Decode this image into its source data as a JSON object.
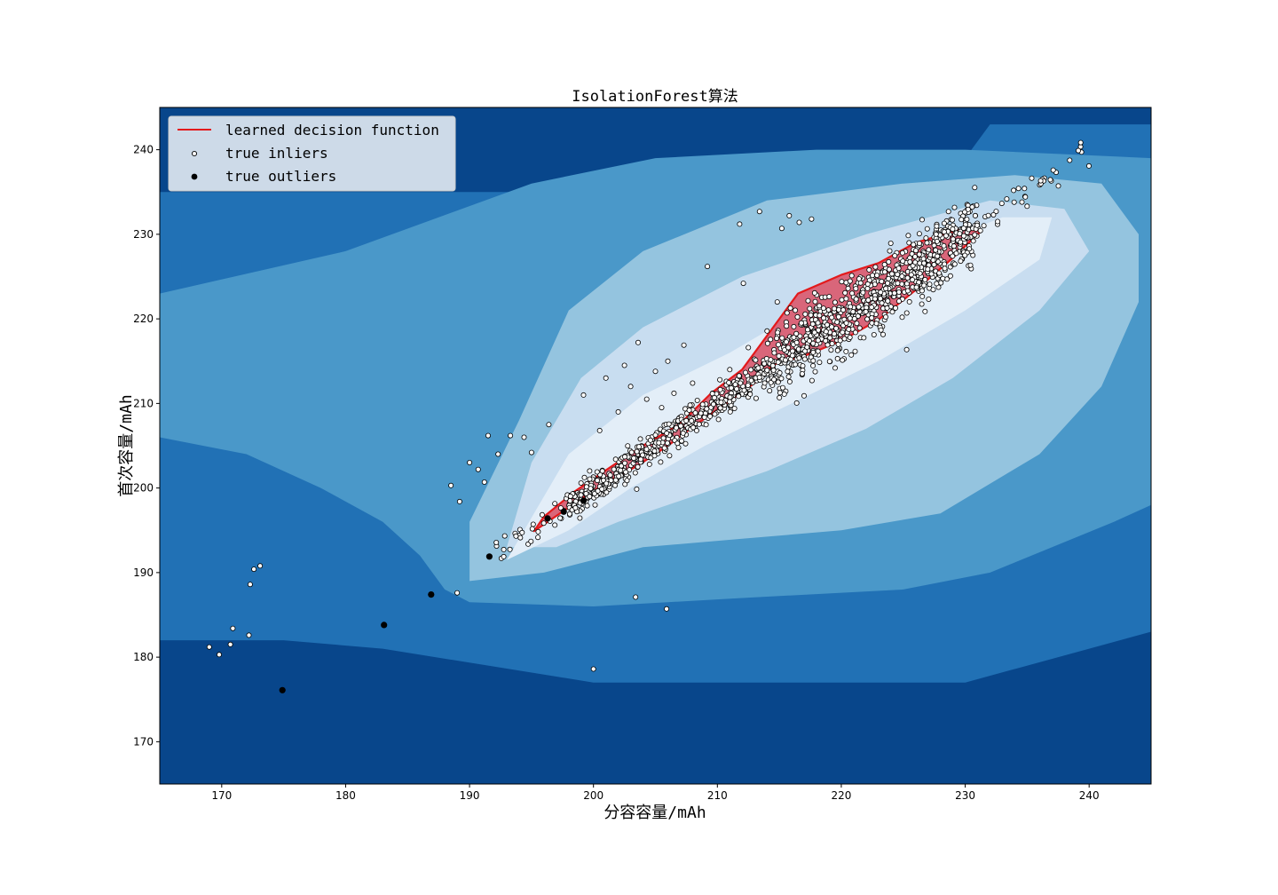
{
  "chart_data": {
    "type": "scatter",
    "title": "IsolationForest算法",
    "xlabel": "分容容量/mAh",
    "ylabel": "首次容量/mAh",
    "xlim": [
      165,
      245
    ],
    "ylim": [
      165,
      245
    ],
    "xticks": [
      170,
      180,
      190,
      200,
      210,
      220,
      230,
      240
    ],
    "yticks": [
      170,
      180,
      190,
      200,
      210,
      220,
      230,
      240
    ],
    "grid": false,
    "legend_position": "top-left",
    "colors": {
      "background_levels": [
        "#08468b",
        "#2171b5",
        "#4a98c9",
        "#94c4df",
        "#c8ddf0",
        "#e3eef8"
      ],
      "decision_line": "#e31a1c",
      "decision_fill": "#d9667a",
      "inlier_face": "#ffffff",
      "inlier_edge": "#000000",
      "outlier": "#000000"
    },
    "legend": [
      {
        "label": "learned decision function",
        "marker": "line"
      },
      {
        "label": "true inliers",
        "marker": "open-circle"
      },
      {
        "label": "true outliers",
        "marker": "filled-circle"
      }
    ],
    "decision_boundary": [
      [
        195.2,
        194.9
      ],
      [
        198.5,
        198.2
      ],
      [
        201.0,
        200.6
      ],
      [
        203.5,
        202.6
      ],
      [
        206.0,
        205.0
      ],
      [
        208.0,
        207.2
      ],
      [
        210.5,
        209.8
      ],
      [
        213.0,
        212.4
      ],
      [
        214.5,
        214.6
      ],
      [
        217.0,
        215.6
      ],
      [
        220.0,
        217.4
      ],
      [
        223.0,
        219.9
      ],
      [
        226.0,
        223.4
      ],
      [
        229.0,
        227.2
      ],
      [
        231.3,
        230.4
      ],
      [
        229.6,
        230.6
      ],
      [
        226.0,
        229.0
      ],
      [
        223.0,
        226.6
      ],
      [
        220.0,
        225.2
      ],
      [
        216.5,
        223.0
      ],
      [
        214.2,
        218.4
      ],
      [
        212.0,
        214.0
      ],
      [
        209.5,
        211.2
      ],
      [
        207.0,
        207.6
      ],
      [
        204.0,
        205.0
      ],
      [
        201.5,
        202.6
      ],
      [
        198.5,
        199.6
      ],
      [
        196.0,
        196.6
      ],
      [
        195.2,
        194.9
      ]
    ],
    "band_inliers": {
      "x_range": [
        192.0,
        240.0
      ],
      "trend": [
        [
          192.0,
          191.8
        ],
        [
          240.5,
          240.0
        ]
      ],
      "spread": 3.0
    },
    "scattered_inliers": [
      [
        169.0,
        181.2
      ],
      [
        169.8,
        180.3
      ],
      [
        170.7,
        181.5
      ],
      [
        170.9,
        183.4
      ],
      [
        172.2,
        182.6
      ],
      [
        172.3,
        188.6
      ],
      [
        172.6,
        190.4
      ],
      [
        173.1,
        190.8
      ],
      [
        188.5,
        200.3
      ],
      [
        189.2,
        198.4
      ],
      [
        189.0,
        187.6
      ],
      [
        190.0,
        203.0
      ],
      [
        190.7,
        202.2
      ],
      [
        191.2,
        200.7
      ],
      [
        191.5,
        206.2
      ],
      [
        192.3,
        204.0
      ],
      [
        193.3,
        206.2
      ],
      [
        194.4,
        206.0
      ],
      [
        195.0,
        204.2
      ],
      [
        196.4,
        207.5
      ],
      [
        200.0,
        178.6
      ],
      [
        203.4,
        187.1
      ],
      [
        205.9,
        185.7
      ],
      [
        199.2,
        211.0
      ],
      [
        201.0,
        213.0
      ],
      [
        202.5,
        214.5
      ],
      [
        203.6,
        217.2
      ],
      [
        205.0,
        213.8
      ],
      [
        206.0,
        215.0
      ],
      [
        207.3,
        216.9
      ],
      [
        204.3,
        210.5
      ],
      [
        206.5,
        211.2
      ],
      [
        208.0,
        212.4
      ],
      [
        209.2,
        226.2
      ],
      [
        211.8,
        231.2
      ],
      [
        212.1,
        224.2
      ],
      [
        213.4,
        232.7
      ],
      [
        215.2,
        230.7
      ],
      [
        215.8,
        232.2
      ],
      [
        216.6,
        231.4
      ],
      [
        217.6,
        231.8
      ],
      [
        211.0,
        214.0
      ],
      [
        219.5,
        214.2
      ],
      [
        200.5,
        206.8
      ],
      [
        202.0,
        209.0
      ],
      [
        203.0,
        212.0
      ],
      [
        205.5,
        209.5
      ],
      [
        207.8,
        209.8
      ],
      [
        210.2,
        212.8
      ],
      [
        212.5,
        216.6
      ]
    ],
    "outliers": [
      [
        174.9,
        176.1
      ],
      [
        183.1,
        183.8
      ],
      [
        186.9,
        187.4
      ],
      [
        191.6,
        191.9
      ],
      [
        196.3,
        196.4
      ],
      [
        197.6,
        197.2
      ],
      [
        199.2,
        198.5
      ]
    ]
  }
}
